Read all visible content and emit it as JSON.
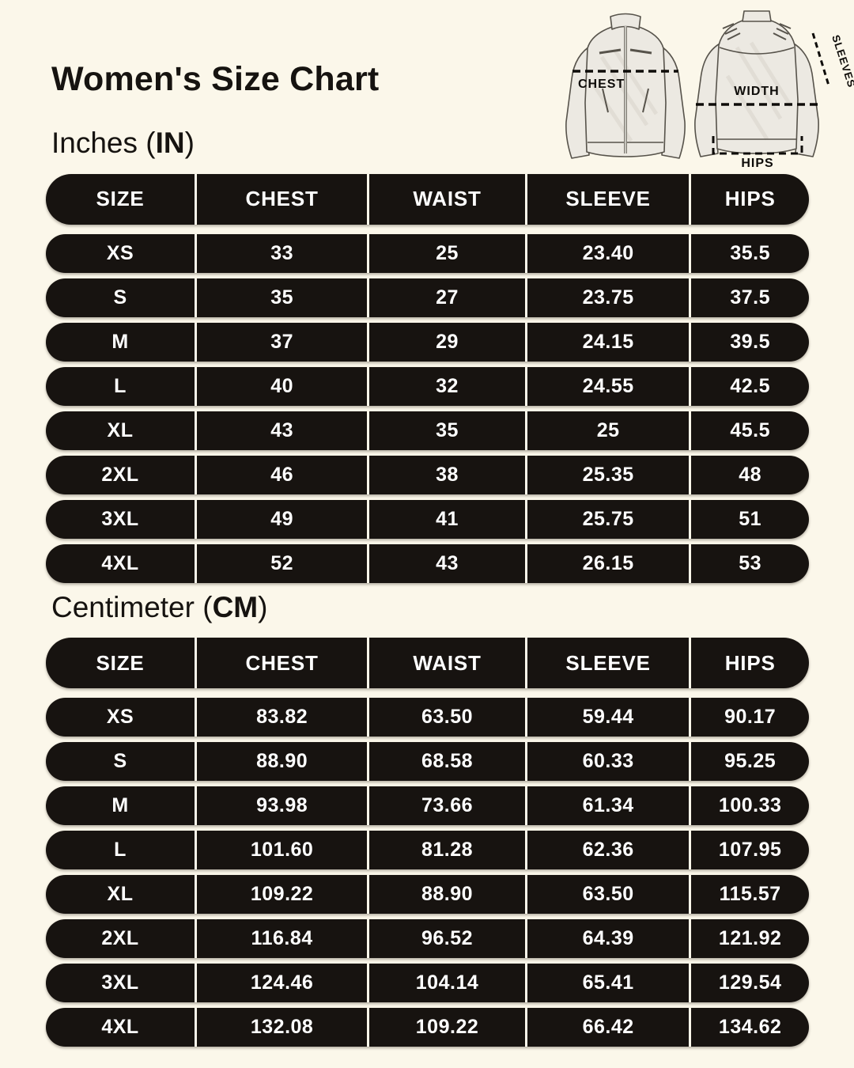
{
  "title": "Women's Size Chart",
  "colors": {
    "background": "#FBF7EA",
    "pill": "#171310",
    "pill_text": "#FFFFFF"
  },
  "jacket_diagram": {
    "chest_label": "CHEST",
    "width_label": "WIDTH",
    "sleeves_label": "SLEEVES",
    "hips_label": "HIPS"
  },
  "sections": [
    {
      "id": "inches",
      "heading_prefix": "Inches (",
      "heading_unit": "IN",
      "heading_suffix": ")",
      "columns": [
        "SIZE",
        "CHEST",
        "WAIST",
        "SLEEVE",
        "HIPS"
      ],
      "rows": [
        [
          "XS",
          "33",
          "25",
          "23.40",
          "35.5"
        ],
        [
          "S",
          "35",
          "27",
          "23.75",
          "37.5"
        ],
        [
          "M",
          "37",
          "29",
          "24.15",
          "39.5"
        ],
        [
          "L",
          "40",
          "32",
          "24.55",
          "42.5"
        ],
        [
          "XL",
          "43",
          "35",
          "25",
          "45.5"
        ],
        [
          "2XL",
          "46",
          "38",
          "25.35",
          "48"
        ],
        [
          "3XL",
          "49",
          "41",
          "25.75",
          "51"
        ],
        [
          "4XL",
          "52",
          "43",
          "26.15",
          "53"
        ]
      ]
    },
    {
      "id": "centimeter",
      "heading_prefix": "Centimeter (",
      "heading_unit": "CM",
      "heading_suffix": ")",
      "columns": [
        "SIZE",
        "CHEST",
        "WAIST",
        "SLEEVE",
        "HIPS"
      ],
      "rows": [
        [
          "XS",
          "83.82",
          "63.50",
          "59.44",
          "90.17"
        ],
        [
          "S",
          "88.90",
          "68.58",
          "60.33",
          "95.25"
        ],
        [
          "M",
          "93.98",
          "73.66",
          "61.34",
          "100.33"
        ],
        [
          "L",
          "101.60",
          "81.28",
          "62.36",
          "107.95"
        ],
        [
          "XL",
          "109.22",
          "88.90",
          "63.50",
          "115.57"
        ],
        [
          "2XL",
          "116.84",
          "96.52",
          "64.39",
          "121.92"
        ],
        [
          "3XL",
          "124.46",
          "104.14",
          "65.41",
          "129.54"
        ],
        [
          "4XL",
          "132.08",
          "109.22",
          "66.42",
          "134.62"
        ]
      ]
    }
  ]
}
